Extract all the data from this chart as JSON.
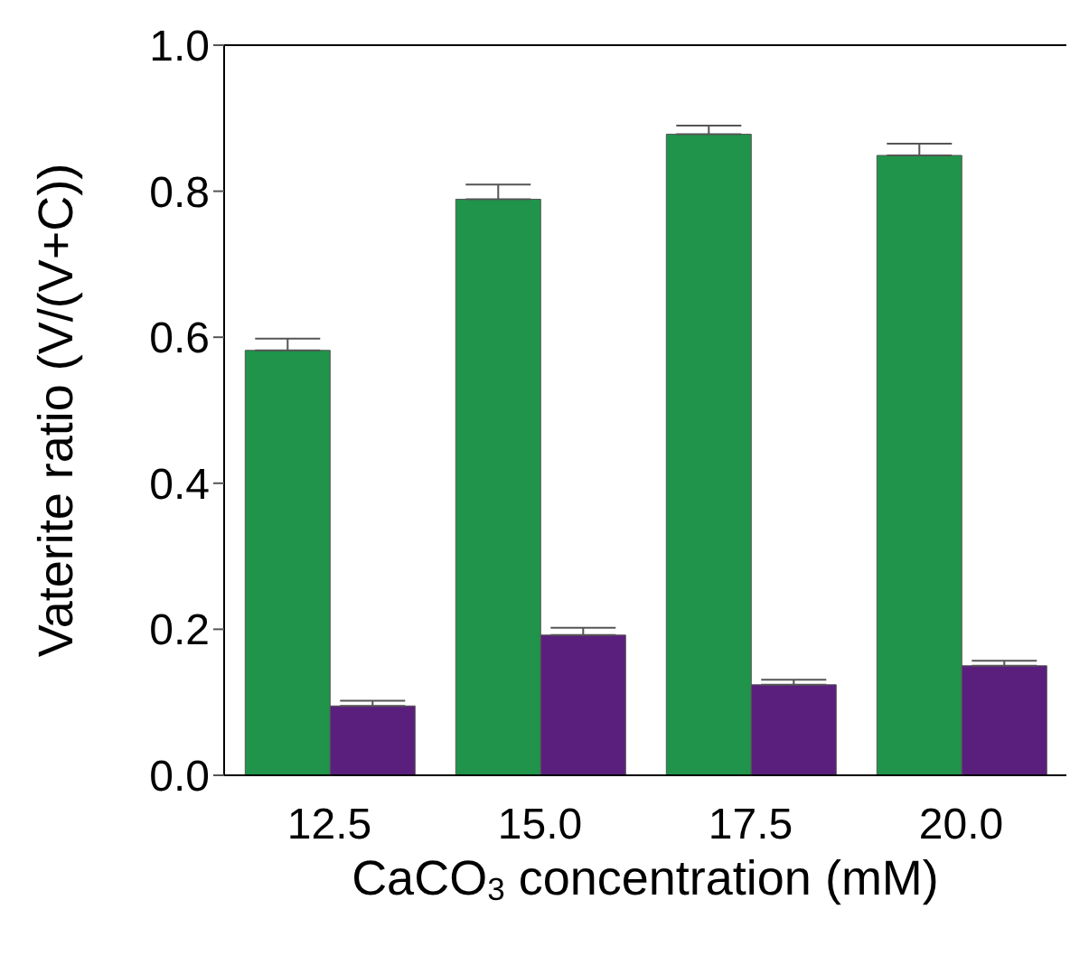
{
  "chart_data": {
    "type": "bar",
    "xlabel": "CaCO$_{3}$ concentration (mM)",
    "ylabel": "Vaterite ratio (V/(V+C))",
    "categories": [
      "12.5",
      "15.0",
      "17.5",
      "20.0"
    ],
    "series": [
      {
        "color": "#20944a",
        "values": [
          0.582,
          0.789,
          0.878,
          0.849
        ],
        "errors": [
          [
            0.582,
            0.598
          ],
          [
            0.789,
            0.809
          ],
          [
            0.878,
            0.89
          ],
          [
            0.849,
            0.865
          ]
        ]
      },
      {
        "color": "#5a1f7c",
        "values": [
          0.095,
          0.192,
          0.124,
          0.15
        ],
        "errors": [
          [
            0.095,
            0.102
          ],
          [
            0.192,
            0.202
          ],
          [
            0.124,
            0.131
          ],
          [
            0.15,
            0.157
          ]
        ]
      }
    ],
    "ylim": [
      0,
      1.0
    ],
    "yticks": [
      {
        "value": 0,
        "label": "0.0"
      },
      {
        "value": 0.2,
        "label": "0.2"
      },
      {
        "value": 0.4,
        "label": "0.4"
      },
      {
        "value": 0.6,
        "label": "0.6"
      },
      {
        "value": 0.8,
        "label": "0.8"
      },
      {
        "value": 1.0,
        "label": "1.0"
      }
    ],
    "grid": false
  }
}
